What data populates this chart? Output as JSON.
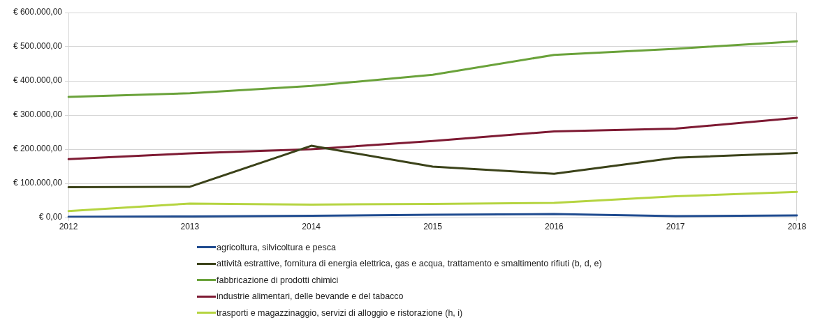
{
  "chart_data": {
    "type": "line",
    "categories": [
      "2012",
      "2013",
      "2014",
      "2015",
      "2016",
      "2017",
      "2018"
    ],
    "series": [
      {
        "name": "agricoltura, silvicoltura e pesca",
        "color": "#1f4b8f",
        "values": [
          2000,
          3000,
          5000,
          8000,
          10000,
          4000,
          6000
        ]
      },
      {
        "name": "attività estrattive, fornitura di energia elettrica, gas e acqua, trattamento e smaltimento rifiuti (b, d, e)",
        "color": "#3b4219",
        "values": [
          89000,
          90000,
          210000,
          149000,
          128000,
          175000,
          189000
        ]
      },
      {
        "name": "fabbricazione di prodotti chimici",
        "color": "#6aa23a",
        "values": [
          353000,
          364000,
          385000,
          418000,
          476000,
          494000,
          516000
        ]
      },
      {
        "name": "industrie alimentari, delle bevande e del tabacco",
        "color": "#7e1a33",
        "values": [
          171000,
          188000,
          200000,
          224000,
          252000,
          260000,
          292000
        ]
      },
      {
        "name": "trasporti e magazzinaggio, servizi di alloggio e ristorazione (h, i)",
        "color": "#b5d440",
        "values": [
          19000,
          41000,
          38000,
          40000,
          43000,
          62000,
          75000
        ]
      }
    ],
    "ylim": [
      0,
      600000
    ],
    "yticks": [
      {
        "value": 0,
        "label": "€ 0,00"
      },
      {
        "value": 100000,
        "label": "€ 100.000,00"
      },
      {
        "value": 200000,
        "label": "€ 200.000,00"
      },
      {
        "value": 300000,
        "label": "€ 300.000,00"
      },
      {
        "value": 400000,
        "label": "€ 400.000,00"
      },
      {
        "value": 500000,
        "label": "€ 500.000,00"
      },
      {
        "value": 600000,
        "label": "€ 600.000,00"
      }
    ],
    "grid": "y",
    "legend": "bottom"
  }
}
